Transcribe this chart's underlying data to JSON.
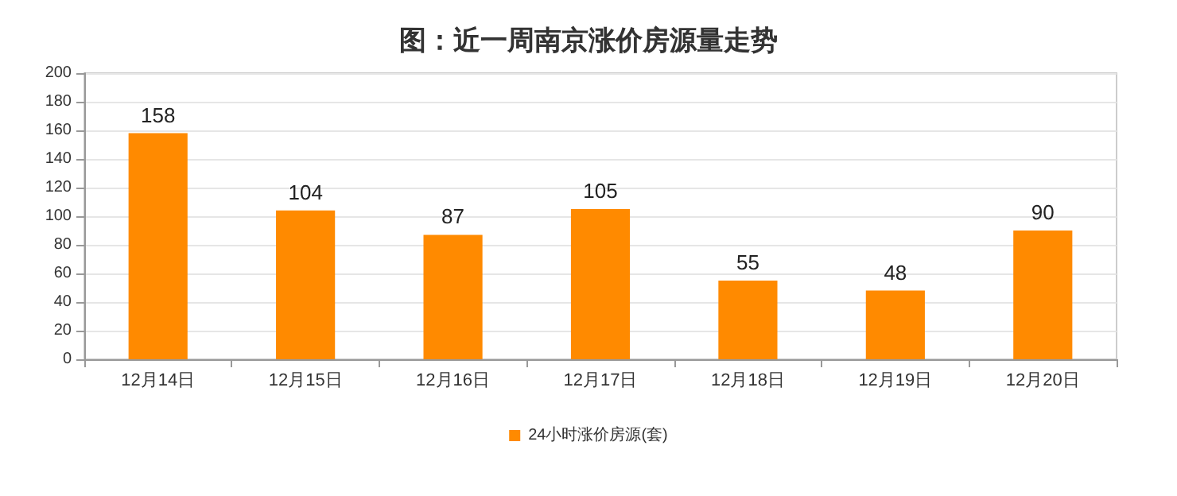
{
  "chart_data": {
    "type": "bar",
    "title": "图：近一周南京涨价房源量走势",
    "categories": [
      "12月14日",
      "12月15日",
      "12月16日",
      "12月17日",
      "12月18日",
      "12月19日",
      "12月20日"
    ],
    "series": [
      {
        "name": "24小时涨价房源(套)",
        "color": "#ff8a00",
        "values": [
          158,
          104,
          87,
          105,
          55,
          48,
          90
        ]
      }
    ],
    "ylim": [
      0,
      200
    ],
    "yticks": [
      0,
      20,
      40,
      60,
      80,
      100,
      120,
      140,
      160,
      180,
      200
    ],
    "grid": "y",
    "legend": "bottom",
    "data_labels": true
  }
}
